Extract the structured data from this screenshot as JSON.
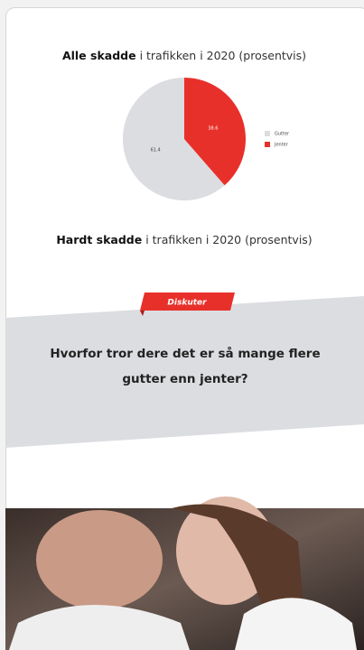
{
  "chart_data": {
    "type": "pie",
    "title": [
      "Alle skadde",
      "i trafikken i 2020 (prosentvis)"
    ],
    "categories": [
      "Gutter",
      "Jenter"
    ],
    "values": [
      61.4,
      38.6
    ],
    "colors": [
      "#dcdde1",
      "#e8302a"
    ],
    "legend": "right"
  },
  "second_heading": [
    "Hardt skadde",
    "i trafikken i 2020 (prosentvis)"
  ],
  "discussion": {
    "tag": "Diskuter",
    "question": "Hvorfor tror dere det er så mange flere gutter enn jenter?"
  }
}
